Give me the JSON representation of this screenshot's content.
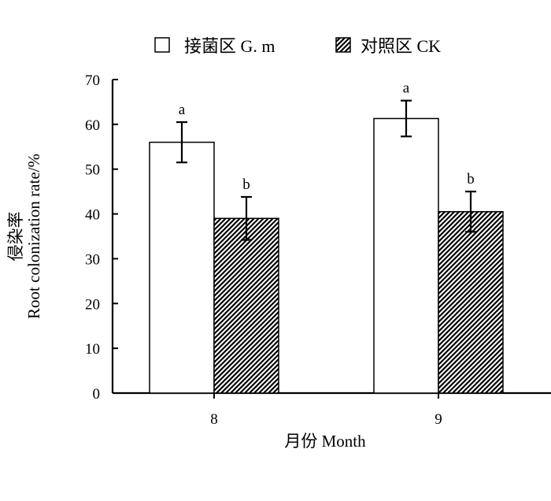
{
  "chart_data": {
    "type": "bar",
    "xlabel": "月份 Month",
    "ylabel_cn": "侵染率",
    "ylabel_en": "Root colonization rate/%",
    "categories": [
      "8",
      "9"
    ],
    "ylim": [
      0,
      70
    ],
    "yticks": [
      "0",
      "10",
      "20",
      "30",
      "40",
      "50",
      "60",
      "70"
    ],
    "grid": false,
    "legend_position": "top",
    "series": [
      {
        "name": "接菌区 G. m",
        "pattern": "open",
        "values": [
          56,
          61.3
        ],
        "errors": [
          4.5,
          4.0
        ],
        "sig_labels": [
          "a",
          "a"
        ]
      },
      {
        "name": "对照区 CK",
        "pattern": "hatched",
        "values": [
          39,
          40.5
        ],
        "errors": [
          4.8,
          4.5
        ],
        "sig_labels": [
          "b",
          "b"
        ]
      }
    ]
  }
}
